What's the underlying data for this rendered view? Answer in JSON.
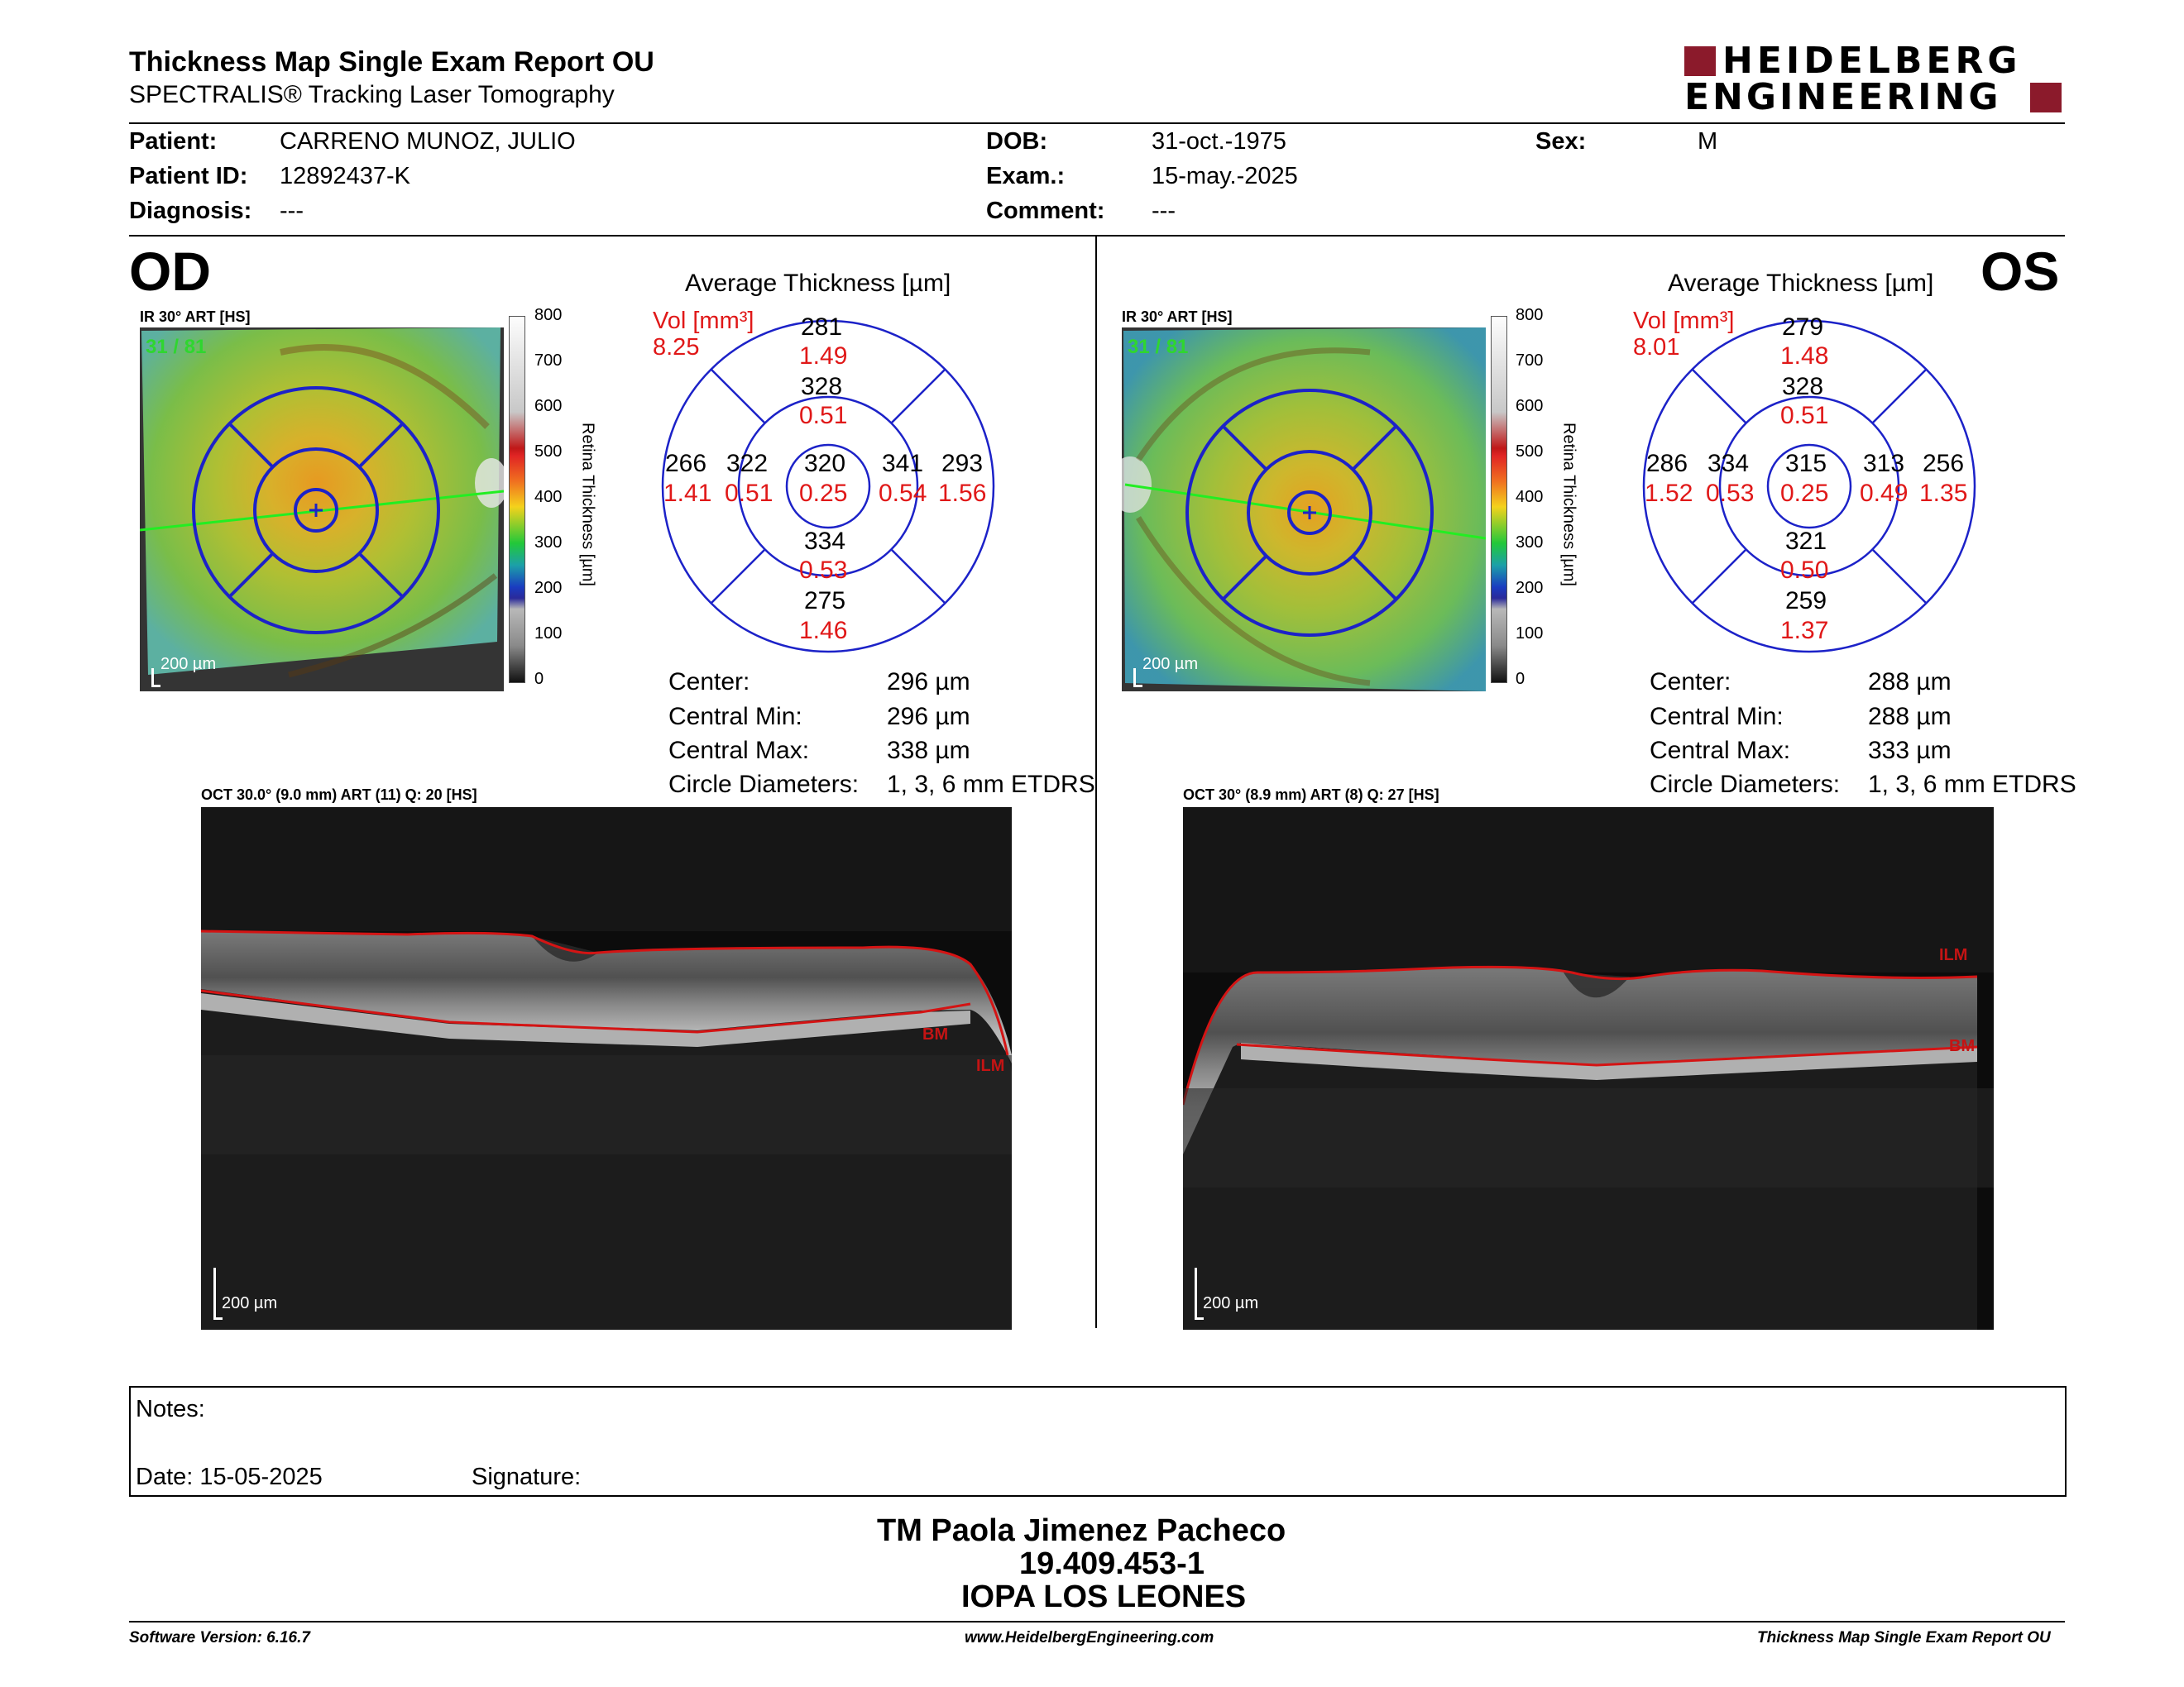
{
  "header": {
    "title": "Thickness Map Single Exam Report OU",
    "subtitle": "SPECTRALIS® Tracking Laser Tomography",
    "logo_line1": "HEIDELBERG",
    "logo_line2": "ENGINEERING"
  },
  "patient": {
    "patient_label": "Patient:",
    "patient_value": "CARRENO MUNOZ, JULIO",
    "id_label": "Patient ID:",
    "id_value": "12892437-K",
    "diag_label": "Diagnosis:",
    "diag_value": "---",
    "dob_label": "DOB:",
    "dob_value": "31-oct.-1975",
    "exam_label": "Exam.:",
    "exam_value": "15-may.-2025",
    "comment_label": "Comment:",
    "comment_value": "---",
    "sex_label": "Sex:",
    "sex_value": "M"
  },
  "colorbar": {
    "ticks": [
      "800",
      "700",
      "600",
      "500",
      "400",
      "300",
      "200",
      "100",
      "0"
    ],
    "title": "Retina Thickness [µm]"
  },
  "od": {
    "eye": "OD",
    "ir_label": "IR 30° ART [HS]",
    "frames": "31 / 81",
    "scale": "200 µm",
    "avg_title": "Average Thickness [µm]",
    "vol_label": "Vol [mm³]",
    "vol_value": "8.25",
    "sectors": {
      "outer_sup": {
        "t": "281",
        "v": "1.49"
      },
      "inner_sup": {
        "t": "328",
        "v": "0.51"
      },
      "center": {
        "t": "320",
        "v": "0.25"
      },
      "inner_left": {
        "t": "322",
        "v": "0.51"
      },
      "outer_left": {
        "t": "266",
        "v": "1.41"
      },
      "inner_right": {
        "t": "341",
        "v": "0.54"
      },
      "outer_right": {
        "t": "293",
        "v": "1.56"
      },
      "inner_inf": {
        "t": "334",
        "v": "0.53"
      },
      "outer_inf": {
        "t": "275",
        "v": "1.46"
      }
    },
    "stats": [
      {
        "label": "Center:",
        "value": "296 µm"
      },
      {
        "label": "Central Min:",
        "value": "296 µm"
      },
      {
        "label": "Central Max:",
        "value": "338 µm"
      },
      {
        "label": "Circle Diameters:",
        "value": "1, 3, 6 mm ETDRS"
      }
    ],
    "oct_label": "OCT 30.0° (9.0 mm) ART (11) Q: 20 [HS]",
    "oct_scale": "200 µm",
    "bm_label": "BM",
    "ilm_label": "ILM"
  },
  "os": {
    "eye": "OS",
    "ir_label": "IR 30° ART [HS]",
    "frames": "31 / 81",
    "scale": "200 µm",
    "avg_title": "Average Thickness [µm]",
    "vol_label": "Vol [mm³]",
    "vol_value": "8.01",
    "sectors": {
      "outer_sup": {
        "t": "279",
        "v": "1.48"
      },
      "inner_sup": {
        "t": "328",
        "v": "0.51"
      },
      "center": {
        "t": "315",
        "v": "0.25"
      },
      "inner_left": {
        "t": "334",
        "v": "0.53"
      },
      "outer_left": {
        "t": "286",
        "v": "1.52"
      },
      "inner_right": {
        "t": "313",
        "v": "0.49"
      },
      "outer_right": {
        "t": "256",
        "v": "1.35"
      },
      "inner_inf": {
        "t": "321",
        "v": "0.50"
      },
      "outer_inf": {
        "t": "259",
        "v": "1.37"
      }
    },
    "stats": [
      {
        "label": "Center:",
        "value": "288 µm"
      },
      {
        "label": "Central Min:",
        "value": "288 µm"
      },
      {
        "label": "Central Max:",
        "value": "333 µm"
      },
      {
        "label": "Circle Diameters:",
        "value": "1, 3, 6 mm ETDRS"
      }
    ],
    "oct_label": "OCT 30° (8.9 mm) ART (8) Q: 27 [HS]",
    "oct_scale": "200 µm",
    "bm_label": "BM",
    "ilm_label": "ILM"
  },
  "notes": {
    "notes_label": "Notes:",
    "date_label": "Date: 15-05-2025",
    "signature_label": "Signature:"
  },
  "signer": {
    "name": "TM Paola Jimenez Pacheco",
    "rut": "19.409.453-1",
    "org": "IOPA LOS LEONES"
  },
  "footer": {
    "software": "Software Version: 6.16.7",
    "url": "www.HeidelbergEngineering.com",
    "report": "Thickness Map Single Exam Report OU"
  }
}
